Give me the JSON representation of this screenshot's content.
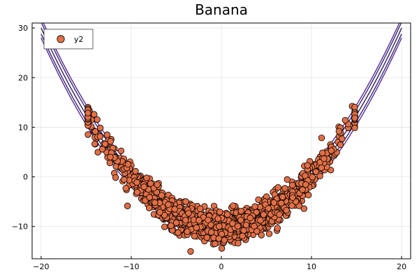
{
  "chart_data": {
    "type": "scatter",
    "title": "Banana",
    "xlabel": "",
    "ylabel": "",
    "xlim": [
      -21,
      21
    ],
    "ylim": [
      -16.5,
      31.0
    ],
    "x_ticks": [
      -20,
      -10,
      0,
      10,
      20
    ],
    "x_tick_labels": [
      "−20",
      "−10",
      "0",
      "10",
      "20"
    ],
    "y_ticks": [
      -10,
      0,
      10,
      20,
      30
    ],
    "y_tick_labels": [
      "−10",
      "0",
      "10",
      "20",
      "30"
    ],
    "grid": true,
    "legend_position": "top-left",
    "series": [
      {
        "name": "y2",
        "kind": "scatter",
        "color": "#e26f46",
        "edge_color": "#000000",
        "model": "y = a*x^2 + c + noise",
        "a": 0.1,
        "c": -10,
        "x_range": [
          -14.8,
          14.8
        ],
        "noise_sd": 1.6,
        "n_points": 1400
      }
    ],
    "contours": [
      {
        "a": 0.1,
        "c": -10.0,
        "color": "#2b1d5c"
      },
      {
        "a": 0.1,
        "c": -11.2,
        "color": "#3a2479"
      },
      {
        "a": 0.1,
        "c": -12.0,
        "color": "#5a2b8f"
      },
      {
        "a": 0.1,
        "c": -8.8,
        "color": "#3a2479"
      },
      {
        "a": 0.1,
        "c": -8.0,
        "color": "#5a2b8f"
      }
    ],
    "contour_x_range": [
      -20,
      20
    ]
  }
}
